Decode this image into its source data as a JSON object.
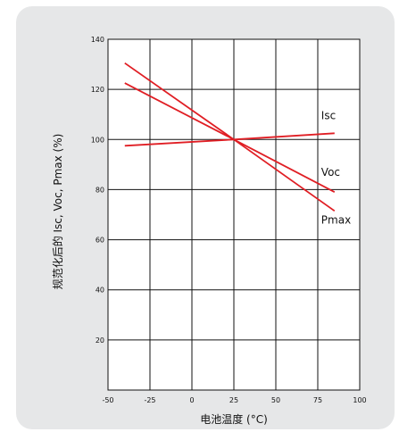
{
  "chart_data": {
    "type": "line",
    "title": "",
    "xlabel": "电池温度 (°C)",
    "ylabel": "规范化后的 Isc, Voc, Pmax (%)",
    "xlim": [
      -50,
      100
    ],
    "ylim": [
      0,
      140
    ],
    "x_ticks": [
      -50,
      -25,
      0,
      25,
      50,
      75,
      100
    ],
    "y_ticks": [
      20,
      40,
      60,
      80,
      100,
      120,
      140
    ],
    "grid": true,
    "legend": "inline-labels-right",
    "series": [
      {
        "name": "Isc",
        "color": "#e01e24",
        "x": [
          -40,
          25,
          85
        ],
        "values": [
          97.5,
          100,
          102.5
        ]
      },
      {
        "name": "Voc",
        "color": "#e01e24",
        "x": [
          -40,
          25,
          85
        ],
        "values": [
          122.5,
          100,
          79
        ]
      },
      {
        "name": "Pmax",
        "color": "#e01e24",
        "x": [
          -40,
          25,
          85
        ],
        "values": [
          130.5,
          100,
          71.5
        ]
      }
    ]
  }
}
